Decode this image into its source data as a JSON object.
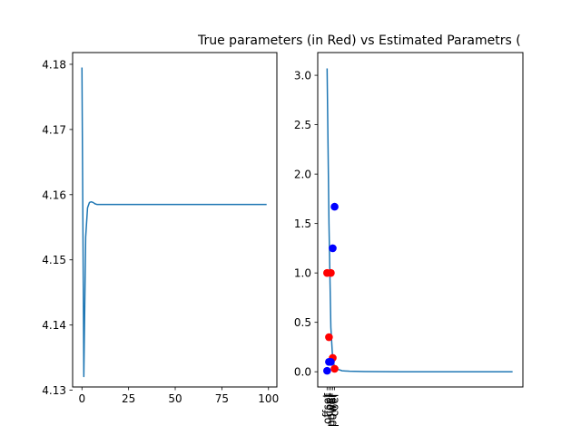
{
  "title": "True parameters (in Red) vs Estimated Parametrs (",
  "chart_data": [
    {
      "type": "line",
      "title": "",
      "xlabel": "",
      "ylabel": "",
      "xlim": [
        -5,
        104.5
      ],
      "ylim": [
        4.1305,
        4.1818
      ],
      "x_ticks": [
        0,
        25,
        50,
        75,
        100
      ],
      "y_ticks": [
        4.13,
        4.14,
        4.15,
        4.16,
        4.17,
        4.18
      ],
      "y_tick_labels": [
        "4.13",
        "4.14",
        "4.15",
        "4.16",
        "4.17",
        "4.18"
      ],
      "series": [
        {
          "color": "#1f77b4",
          "x": [
            0,
            1,
            2,
            3,
            4,
            5,
            6,
            7,
            8,
            10,
            15,
            20,
            30,
            40,
            50,
            60,
            70,
            80,
            90,
            99
          ],
          "y": [
            4.1795,
            4.1321,
            4.1535,
            4.158,
            4.1588,
            4.1589,
            4.1588,
            4.1586,
            4.1585,
            4.1585,
            4.1585,
            4.1585,
            4.1585,
            4.1585,
            4.1585,
            4.1585,
            4.1585,
            4.1585,
            4.1585,
            4.1585
          ]
        }
      ]
    },
    {
      "type": "scatter",
      "title": "True parameters (in Red) vs Estimated Parametrs (",
      "xlabel": "",
      "ylabel": "",
      "xlim": [
        -5,
        104.5
      ],
      "ylim": [
        -0.154,
        3.23
      ],
      "x_ticks": [
        0,
        1,
        2,
        3,
        4
      ],
      "x_tick_labels": [
        "offset",
        "coef",
        "power",
        "power",
        "coef"
      ],
      "y_ticks": [
        0.0,
        0.5,
        1.0,
        1.5,
        2.0,
        2.5,
        3.0
      ],
      "y_tick_labels": [
        "0.0",
        "0.5",
        "1.0",
        "1.5",
        "2.0",
        "2.5",
        "3.0"
      ],
      "line_series": {
        "color": "#1f77b4",
        "x": [
          0,
          1,
          2,
          3,
          4,
          5,
          8,
          12,
          20,
          40,
          60,
          80,
          99
        ],
        "y": [
          3.07,
          1.5,
          0.45,
          0.12,
          0.05,
          0.03,
          0.01,
          0.005,
          0.002,
          0.0,
          0.0,
          0.0,
          0.0
        ]
      },
      "true_points": {
        "color": "#ff0000",
        "x": [
          0,
          1,
          2,
          3,
          4
        ],
        "y": [
          1.0,
          0.35,
          1.0,
          0.14,
          0.03
        ]
      },
      "estimated_points": {
        "color": "#0000ff",
        "x": [
          0,
          1,
          2,
          3,
          4
        ],
        "y": [
          0.01,
          0.1,
          0.1,
          1.25,
          1.67
        ]
      }
    }
  ]
}
